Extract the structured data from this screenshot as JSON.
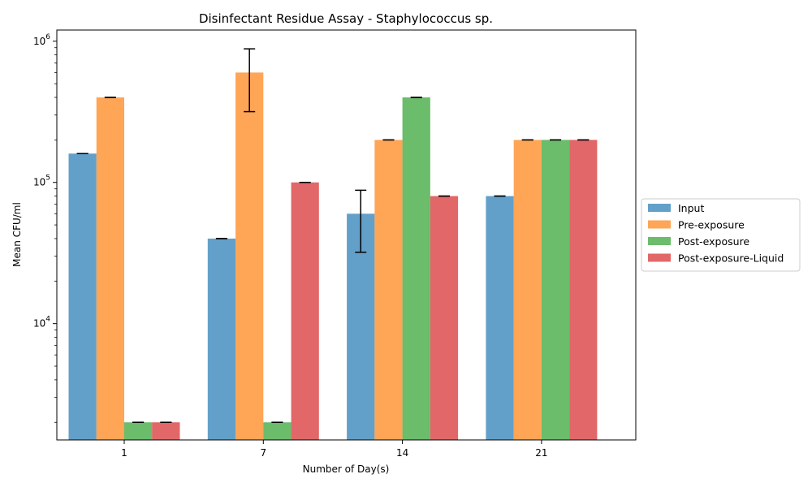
{
  "chart_data": {
    "type": "bar",
    "title": "Disinfectant Residue Assay - Staphylococcus sp.",
    "xlabel": "Number of Day(s)",
    "ylabel": "Mean CFU/ml",
    "yscale": "log",
    "ylim": [
      1500,
      1200000
    ],
    "y_ticks": [
      {
        "value": 10000,
        "base": "10",
        "exp": "4"
      },
      {
        "value": 100000,
        "base": "10",
        "exp": "5"
      },
      {
        "value": 1000000,
        "base": "10",
        "exp": "6"
      }
    ],
    "categories": [
      "1",
      "7",
      "14",
      "21"
    ],
    "series": [
      {
        "name": "Input",
        "color": "#1f77b4",
        "values": [
          160000,
          40000,
          60000,
          80000
        ],
        "errors": [
          0,
          0,
          28000,
          0
        ]
      },
      {
        "name": "Pre-exposure",
        "color": "#ff7f0e",
        "values": [
          400000,
          600000,
          200000,
          200000
        ],
        "errors": [
          0,
          283000,
          0,
          0
        ]
      },
      {
        "name": "Post-exposure",
        "color": "#2ca02c",
        "values": [
          2000,
          2000,
          400000,
          200000
        ],
        "errors": [
          0,
          0,
          0,
          0
        ]
      },
      {
        "name": "Post-exposure-Liquid",
        "color": "#d62728",
        "values": [
          2000,
          100000,
          80000,
          200000
        ],
        "errors": [
          0,
          0,
          0,
          0
        ]
      }
    ],
    "bar_opacity": 0.7,
    "legend_position": "center-right outside",
    "grid": false
  }
}
